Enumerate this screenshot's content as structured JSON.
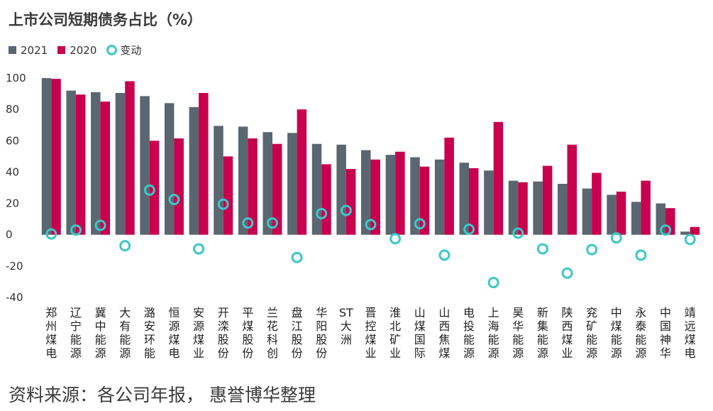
{
  "title": "上市公司短期债务占比（%）",
  "source": "资料来源：各公司年报， 惠誉博华整理",
  "legend": {
    "s2021": "2021",
    "s2020": "2020",
    "change": "变动"
  },
  "colors": {
    "s2021": "#5a6670",
    "s2020": "#c8004d",
    "change": "#3cc8c8"
  },
  "chart_data": {
    "type": "bar",
    "title": "上市公司短期债务占比（%）",
    "ylim": [
      -40,
      100
    ],
    "yticks": [
      -40,
      -20,
      0,
      20,
      40,
      60,
      80,
      100
    ],
    "legend_position": "top-left",
    "grid": false,
    "categories": [
      "郑州煤电",
      "辽宁能源",
      "冀中能源",
      "大有能源",
      "潞安环能",
      "恒源煤电",
      "安源煤业",
      "开滦股份",
      "平煤股份",
      "兰花科创",
      "盘江股份",
      "华阳股份",
      "ST大洲",
      "晋控煤业",
      "淮北矿业",
      "山煤国际",
      "山西焦煤",
      "电投能源",
      "上海能源",
      "昊华能源",
      "新集能源",
      "陕西煤业",
      "兖矿能源",
      "中煤能源",
      "永泰能源",
      "中国神华",
      "靖远煤电"
    ],
    "series": [
      {
        "name": "2021",
        "type": "bar",
        "values": [
          100,
          92,
          91,
          90.5,
          88.5,
          84,
          81.5,
          69.5,
          69,
          65.5,
          65,
          58,
          57.5,
          54,
          51,
          49.5,
          48,
          46,
          41,
          34.5,
          34,
          32.5,
          29.5,
          25.5,
          21,
          20,
          2
        ]
      },
      {
        "name": "2020",
        "type": "bar",
        "values": [
          99.5,
          89.5,
          85,
          98,
          60,
          61.5,
          90.5,
          50,
          61.5,
          58,
          80,
          45,
          42,
          48,
          53,
          43.5,
          62,
          42.5,
          72,
          33.5,
          44,
          57.5,
          39.5,
          27.5,
          34.5,
          17,
          5
        ]
      },
      {
        "name": "变动",
        "type": "scatter",
        "values": [
          0.5,
          3,
          6,
          -7,
          28.5,
          22.5,
          -9,
          19.5,
          7.5,
          7.5,
          -14.5,
          13.5,
          15.5,
          6.5,
          -2.5,
          7,
          -13,
          3.5,
          -30.5,
          1,
          -9,
          -24.5,
          -9.5,
          -2,
          -13,
          3,
          -3
        ]
      }
    ]
  }
}
